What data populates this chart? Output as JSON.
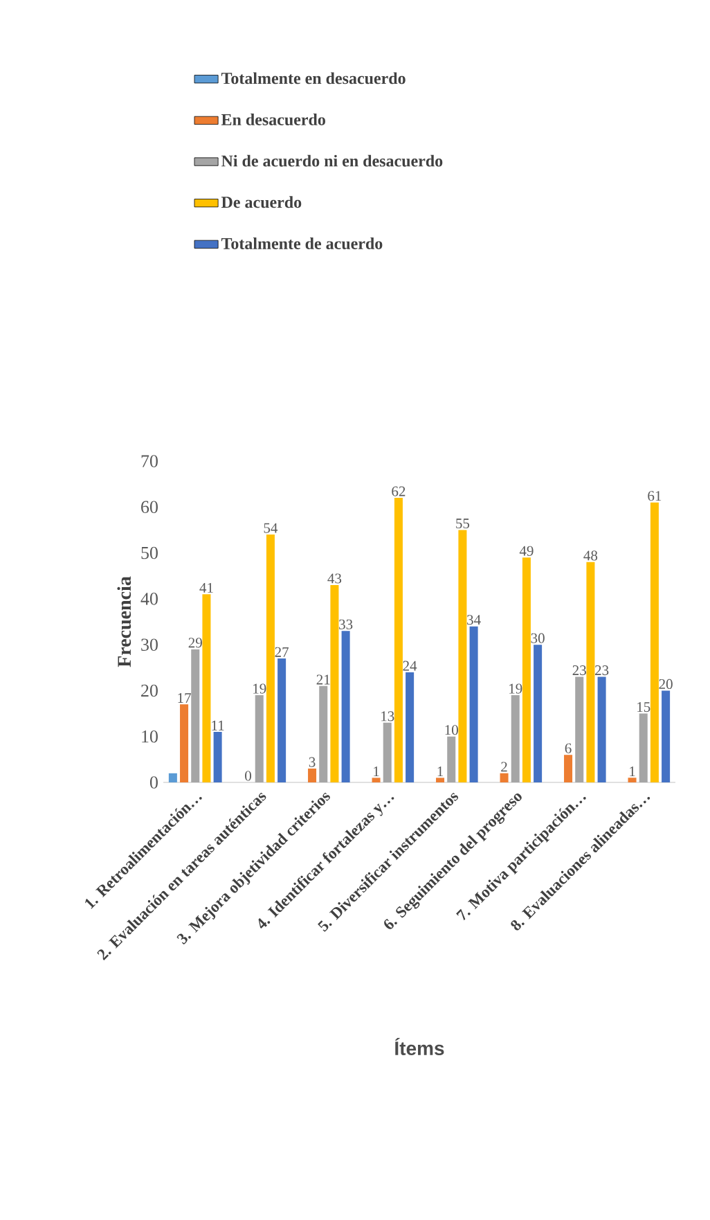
{
  "chart_data": {
    "type": "bar",
    "xlabel": "Ítems",
    "ylabel": "Frecuencia",
    "legend": "top",
    "categories": [
      "1. Retroalimentación…",
      "2. Evaluación en tareas auténticas",
      "3. Mejora objetividad criterios",
      "4. Identificar fortalezas y…",
      "5. Diversificar instrumentos",
      "6. Seguimiento del progreso",
      "7. Motiva participación…",
      "8. Evaluaciones alineadas…"
    ],
    "ylim": [
      0,
      70
    ],
    "yticks": [
      0,
      10,
      20,
      30,
      40,
      50,
      60,
      70
    ],
    "series": [
      {
        "name": "Totalmente en desacuerdo",
        "color": "#5b9bd5",
        "values": [
          2,
          0,
          0,
          0,
          0,
          0,
          0,
          0
        ],
        "value_labels": [
          null,
          null,
          null,
          null,
          null,
          null,
          null,
          null
        ]
      },
      {
        "name": "En desacuerdo",
        "color": "#ed7d31",
        "values": [
          17,
          0,
          3,
          1,
          1,
          2,
          6,
          1
        ],
        "value_labels": [
          "17",
          "0",
          "3",
          "1",
          "1",
          "2",
          "6",
          "1"
        ]
      },
      {
        "name": "Ni de acuerdo ni en desacuerdo",
        "color": "#a5a5a5",
        "values": [
          29,
          19,
          21,
          13,
          10,
          19,
          23,
          15
        ],
        "value_labels": [
          "29",
          "19",
          "21",
          "13",
          "10",
          "19",
          "23",
          "15"
        ]
      },
      {
        "name": "De acuerdo",
        "color": "#ffc000",
        "values": [
          41,
          54,
          43,
          62,
          55,
          49,
          48,
          61
        ],
        "value_labels": [
          "41",
          "54",
          "43",
          "62",
          "55",
          "49",
          "48",
          "61"
        ]
      },
      {
        "name": "Totalmente de acuerdo",
        "color": "#4472c4",
        "values": [
          11,
          27,
          33,
          24,
          34,
          30,
          23,
          20
        ],
        "value_labels": [
          "11",
          "27",
          "33",
          "24",
          "34",
          "30",
          "23",
          "20"
        ]
      }
    ]
  }
}
